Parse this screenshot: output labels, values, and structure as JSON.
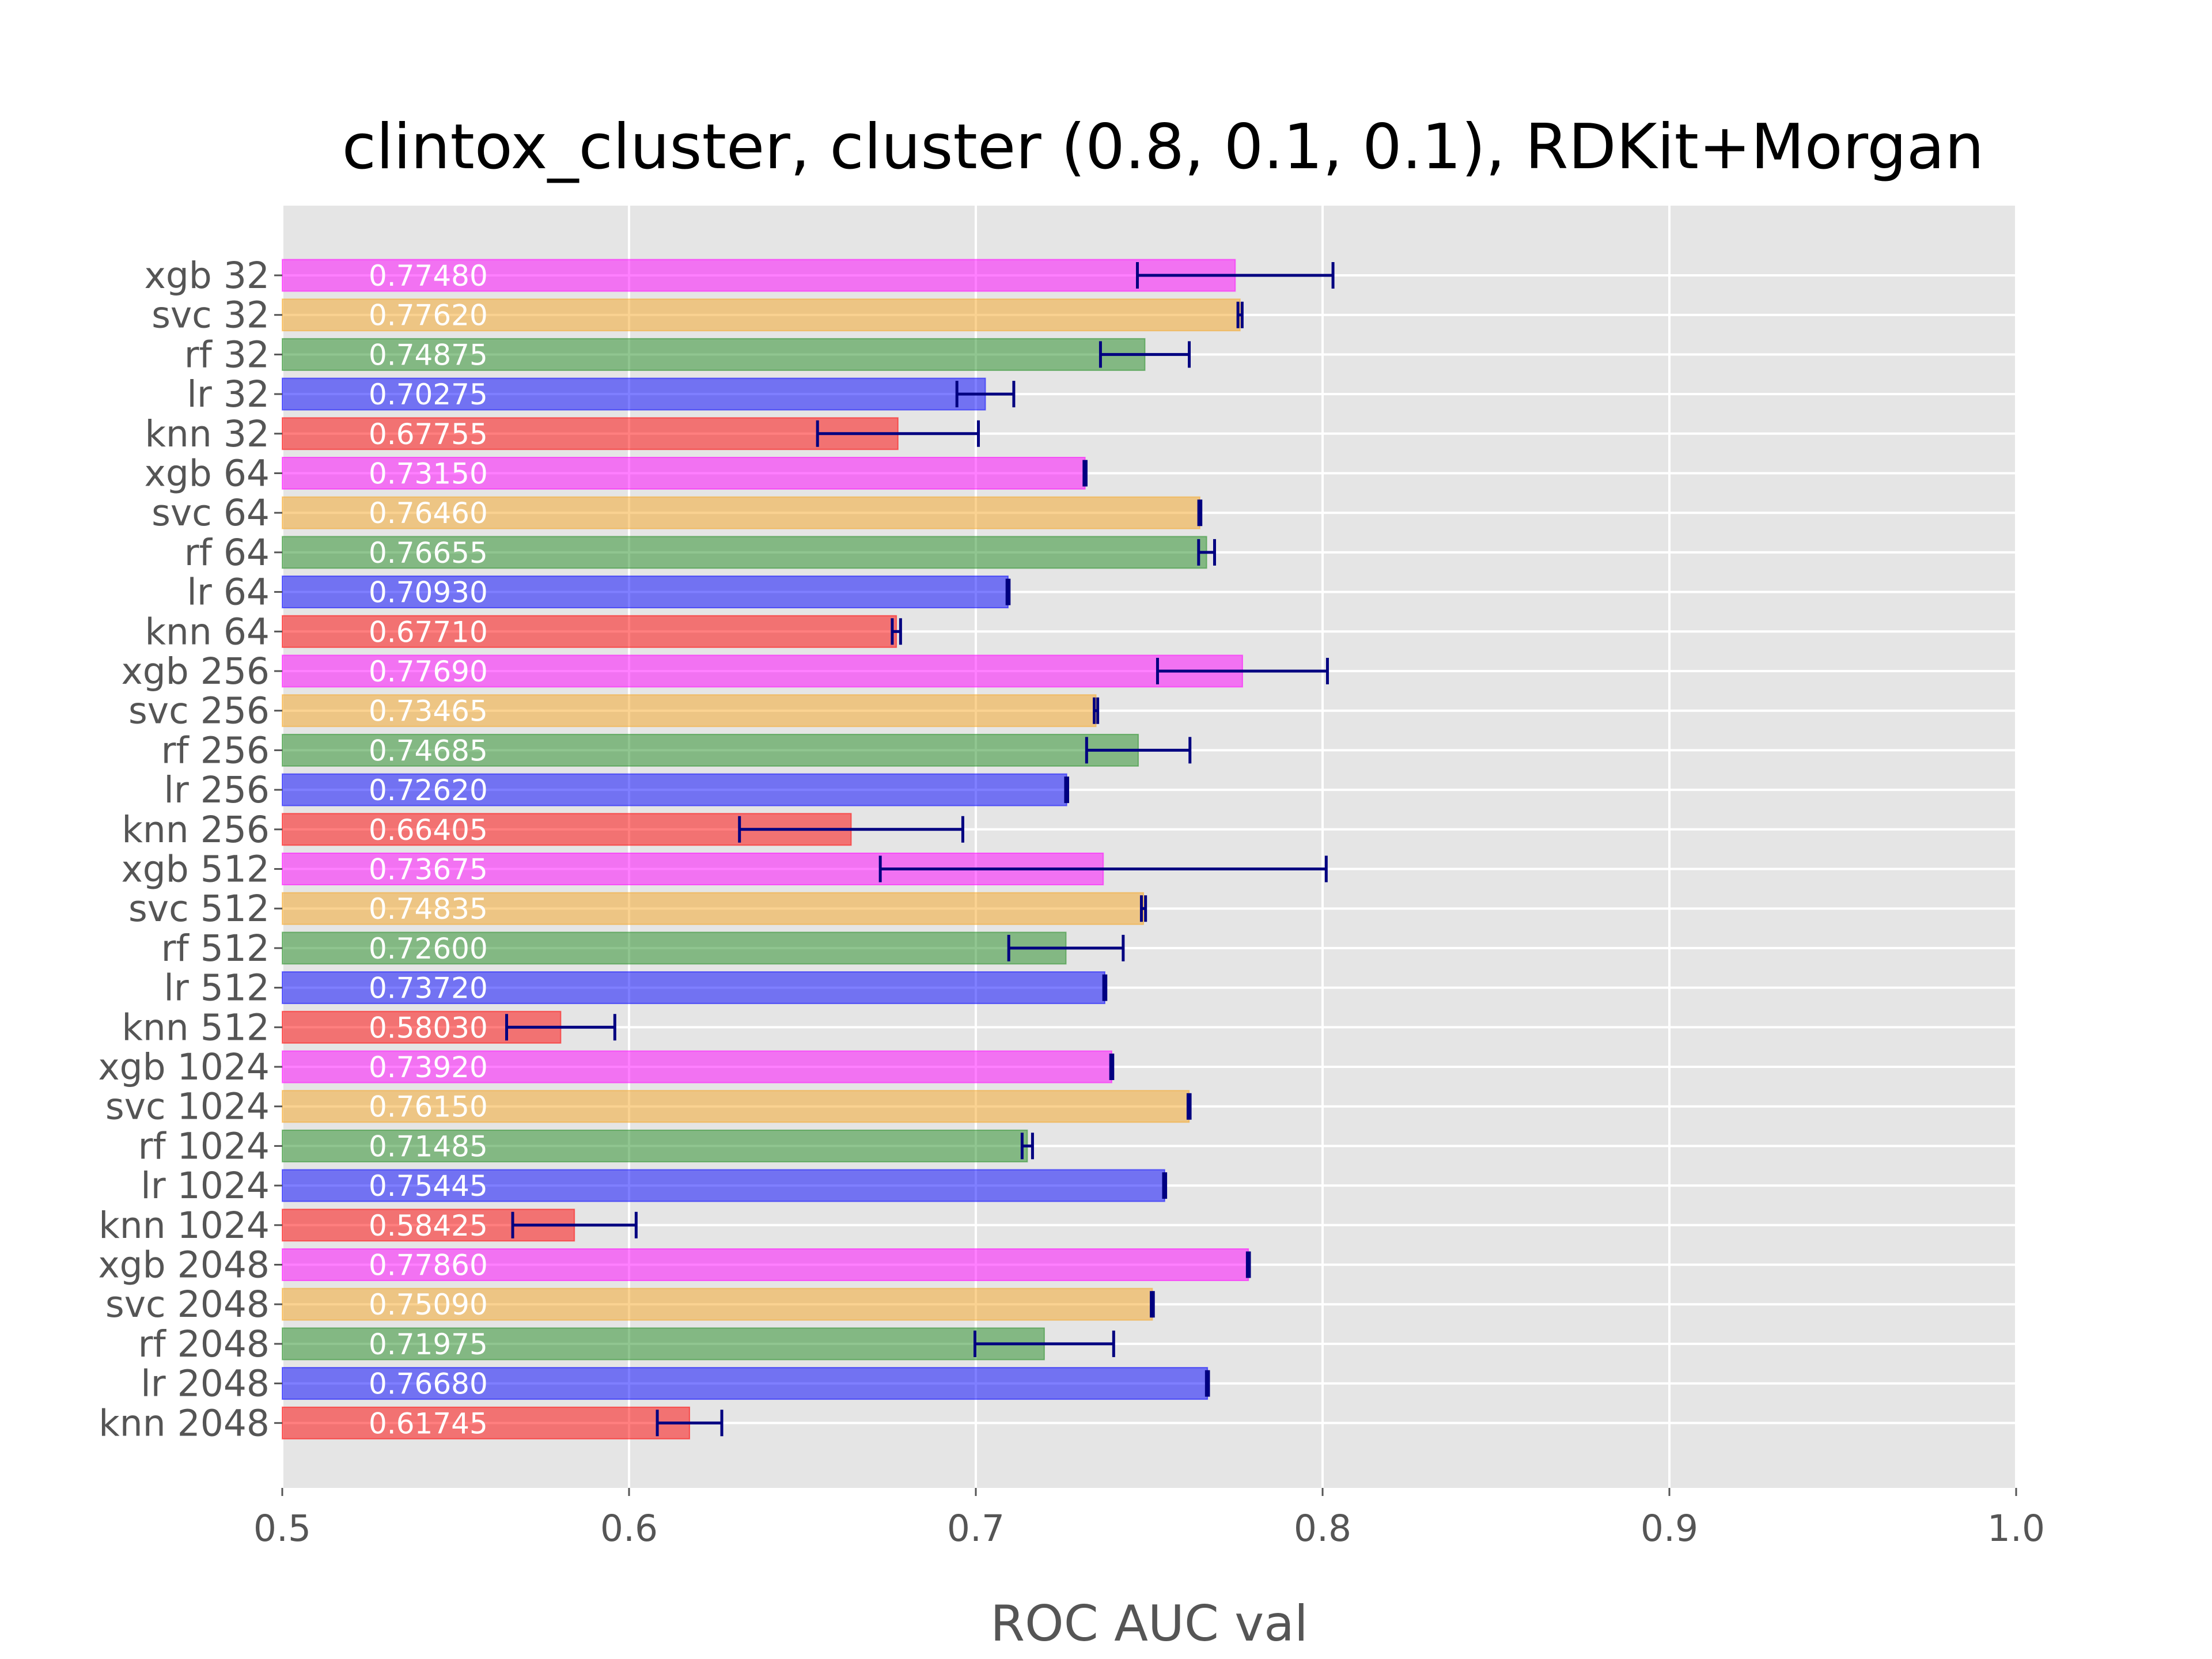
{
  "chart_data": {
    "type": "bar",
    "orientation": "horizontal",
    "title": "clintox_cluster, cluster (0.8, 0.1, 0.1), RDKit+Morgan",
    "xlabel": "ROC AUC val",
    "ylabel": "",
    "xlim": [
      0.5,
      1.0
    ],
    "xticks": [
      "0.5",
      "0.6",
      "0.7",
      "0.8",
      "0.9",
      "1.0"
    ],
    "grid": true,
    "colors": {
      "xgb": "#ff00ff",
      "svc": "#f5a623",
      "rf": "#228b22",
      "lr": "#0000ff",
      "knn": "#ff0000",
      "errorbar": "#000080",
      "background": "#e5e5e5"
    },
    "categories": [
      "xgb 32",
      "svc 32",
      "rf 32",
      "lr 32",
      "knn 32",
      "xgb 64",
      "svc 64",
      "rf 64",
      "lr 64",
      "knn 64",
      "xgb 256",
      "svc 256",
      "rf 256",
      "lr 256",
      "knn 256",
      "xgb 512",
      "svc 512",
      "rf 512",
      "lr 512",
      "knn 512",
      "xgb 1024",
      "svc 1024",
      "rf 1024",
      "lr 1024",
      "knn 1024",
      "xgb 2048",
      "svc 2048",
      "rf 2048",
      "lr 2048",
      "knn 2048"
    ],
    "labels": [
      "0.77480",
      "0.77620",
      "0.74875",
      "0.70275",
      "0.67755",
      "0.73150",
      "0.76460",
      "0.76655",
      "0.70930",
      "0.67710",
      "0.77690",
      "0.73465",
      "0.74685",
      "0.72620",
      "0.66405",
      "0.73675",
      "0.74835",
      "0.72600",
      "0.73720",
      "0.58030",
      "0.73920",
      "0.76150",
      "0.71485",
      "0.75445",
      "0.58425",
      "0.77860",
      "0.75090",
      "0.71975",
      "0.76680",
      "0.61745"
    ],
    "values": [
      0.7748,
      0.7762,
      0.74875,
      0.70275,
      0.67755,
      0.7315,
      0.7646,
      0.76655,
      0.7093,
      0.6771,
      0.7769,
      0.73465,
      0.74685,
      0.7262,
      0.66405,
      0.73675,
      0.74835,
      0.726,
      0.7372,
      0.5803,
      0.7392,
      0.7615,
      0.71485,
      0.75445,
      0.58425,
      0.7786,
      0.7509,
      0.71975,
      0.7668,
      0.61745
    ],
    "errors": [
      0.0282,
      0.0006,
      0.0128,
      0.0082,
      0.0232,
      0.0003,
      0.0003,
      0.0023,
      0.0003,
      0.0012,
      0.0245,
      0.0005,
      0.0149,
      0.0003,
      0.0322,
      0.0643,
      0.0006,
      0.0165,
      0.0003,
      0.0156,
      0.0003,
      0.0003,
      0.0015,
      0.0003,
      0.0178,
      0.0003,
      0.0003,
      0.02,
      0.0003,
      0.0093
    ]
  }
}
